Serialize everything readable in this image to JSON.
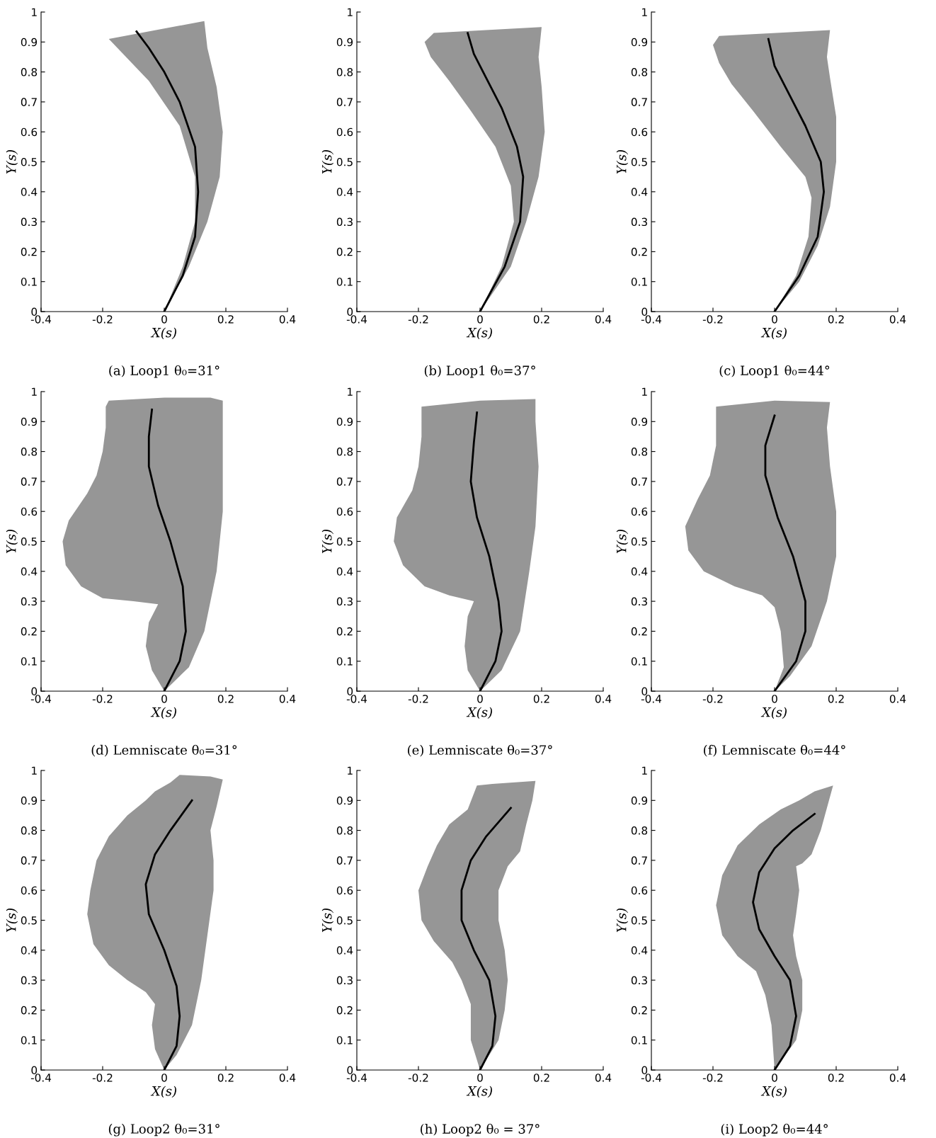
{
  "chart_data": [
    {
      "type": "line",
      "xlabel": "X(s)",
      "ylabel": "Y(s)",
      "annotations": [
        "(a) Loop1 θ₀=31°"
      ],
      "xlim": [
        -0.4,
        0.4
      ],
      "ylim": [
        0,
        1
      ],
      "xticks": [
        -0.4,
        -0.2,
        0,
        0.2,
        0.4
      ],
      "yticks": [
        0,
        0.1,
        0.2,
        0.3,
        0.4,
        0.5,
        0.6,
        0.7,
        0.8,
        0.9,
        1
      ],
      "grid": false,
      "series": [
        {
          "type": "area",
          "color": "#969696",
          "x": [
            0,
            0.08,
            0.14,
            0.18,
            0.19,
            0.17,
            0.14,
            0.13,
            -0.18,
            -0.05,
            0.05,
            0.1,
            0.1,
            0.06,
            0
          ],
          "values": [
            0,
            0.15,
            0.3,
            0.45,
            0.6,
            0.75,
            0.88,
            0.97,
            0.91,
            0.77,
            0.62,
            0.45,
            0.3,
            0.15,
            0
          ]
        },
        {
          "type": "line",
          "color": "#000000",
          "x": [
            0,
            0.06,
            0.1,
            0.11,
            0.1,
            0.05,
            0,
            -0.05,
            -0.09
          ],
          "values": [
            0,
            0.12,
            0.25,
            0.4,
            0.55,
            0.7,
            0.8,
            0.88,
            0.935
          ]
        }
      ]
    },
    {
      "type": "line",
      "xlabel": "X(s)",
      "ylabel": "Y(s)",
      "annotations": [
        "(b) Loop1 θ₀=37°"
      ],
      "xlim": [
        -0.4,
        0.4
      ],
      "ylim": [
        0,
        1
      ],
      "xticks": [
        -0.4,
        -0.2,
        0,
        0.2,
        0.4
      ],
      "yticks": [
        0,
        0.1,
        0.2,
        0.3,
        0.4,
        0.5,
        0.6,
        0.7,
        0.8,
        0.9,
        1
      ],
      "grid": false,
      "series": [
        {
          "type": "area",
          "color": "#969696",
          "x": [
            0,
            0.1,
            0.15,
            0.19,
            0.21,
            0.2,
            0.19,
            0.2,
            -0.15,
            -0.18,
            -0.16,
            -0.1,
            -0.03,
            0.05,
            0.1,
            0.11,
            0.07,
            0
          ],
          "values": [
            0,
            0.15,
            0.3,
            0.45,
            0.6,
            0.75,
            0.85,
            0.95,
            0.93,
            0.9,
            0.85,
            0.77,
            0.67,
            0.55,
            0.42,
            0.3,
            0.15,
            0
          ]
        },
        {
          "type": "line",
          "color": "#000000",
          "x": [
            0,
            0.08,
            0.13,
            0.14,
            0.12,
            0.07,
            0.02,
            -0.02,
            -0.04
          ],
          "values": [
            0,
            0.15,
            0.3,
            0.45,
            0.55,
            0.68,
            0.78,
            0.86,
            0.93
          ]
        }
      ]
    },
    {
      "type": "line",
      "xlabel": "X(s)",
      "ylabel": "Y(s)",
      "annotations": [
        "(c) Loop1 θ₀=44°"
      ],
      "xlim": [
        -0.4,
        0.4
      ],
      "ylim": [
        0,
        1
      ],
      "xticks": [
        -0.4,
        -0.2,
        0,
        0.2,
        0.4
      ],
      "yticks": [
        0,
        0.1,
        0.2,
        0.3,
        0.4,
        0.5,
        0.6,
        0.7,
        0.8,
        0.9,
        1
      ],
      "grid": false,
      "series": [
        {
          "type": "area",
          "color": "#969696",
          "x": [
            0,
            0.08,
            0.14,
            0.18,
            0.2,
            0.2,
            0.18,
            0.17,
            0.18,
            -0.18,
            -0.2,
            -0.18,
            -0.14,
            -0.07,
            0.02,
            0.1,
            0.12,
            0.11,
            0.07,
            0
          ],
          "values": [
            0,
            0.1,
            0.22,
            0.35,
            0.5,
            0.65,
            0.78,
            0.85,
            0.94,
            0.92,
            0.89,
            0.83,
            0.76,
            0.67,
            0.55,
            0.45,
            0.38,
            0.25,
            0.12,
            0
          ]
        },
        {
          "type": "line",
          "color": "#000000",
          "x": [
            0,
            0.08,
            0.14,
            0.16,
            0.15,
            0.1,
            0.05,
            0,
            -0.02
          ],
          "values": [
            0,
            0.12,
            0.25,
            0.4,
            0.5,
            0.62,
            0.72,
            0.82,
            0.91
          ]
        }
      ]
    },
    {
      "type": "line",
      "xlabel": "X(s)",
      "ylabel": "Y(s)",
      "annotations": [
        "(d) Lemniscate θ₀=31°"
      ],
      "xlim": [
        -0.4,
        0.4
      ],
      "ylim": [
        0,
        1
      ],
      "xticks": [
        -0.4,
        -0.2,
        0,
        0.2,
        0.4
      ],
      "yticks": [
        0,
        0.1,
        0.2,
        0.3,
        0.4,
        0.5,
        0.6,
        0.7,
        0.8,
        0.9,
        1
      ],
      "grid": false,
      "series": [
        {
          "type": "area",
          "color": "#969696",
          "x": [
            0,
            0.08,
            0.13,
            0.17,
            0.19,
            0.19,
            0.19,
            0.15,
            0,
            -0.18,
            -0.19,
            -0.19,
            -0.2,
            -0.22,
            -0.25,
            -0.31,
            -0.33,
            -0.32,
            -0.27,
            -0.2,
            -0.1,
            -0.02,
            -0.05,
            -0.06,
            -0.04,
            0
          ],
          "values": [
            0,
            0.08,
            0.2,
            0.4,
            0.6,
            0.8,
            0.97,
            0.98,
            0.98,
            0.97,
            0.95,
            0.88,
            0.8,
            0.72,
            0.66,
            0.57,
            0.5,
            0.42,
            0.35,
            0.31,
            0.3,
            0.29,
            0.23,
            0.15,
            0.07,
            0
          ]
        },
        {
          "type": "line",
          "color": "#000000",
          "x": [
            0,
            0.05,
            0.07,
            0.06,
            0.02,
            -0.02,
            -0.05,
            -0.05,
            -0.04
          ],
          "values": [
            0,
            0.1,
            0.2,
            0.35,
            0.5,
            0.62,
            0.75,
            0.85,
            0.94
          ]
        }
      ]
    },
    {
      "type": "line",
      "xlabel": "X(s)",
      "ylabel": "Y(s)",
      "annotations": [
        "(e) Lemniscate θ₀=37°"
      ],
      "xlim": [
        -0.4,
        0.4
      ],
      "ylim": [
        0,
        1
      ],
      "xticks": [
        -0.4,
        -0.2,
        0,
        0.2,
        0.4
      ],
      "yticks": [
        0,
        0.1,
        0.2,
        0.3,
        0.4,
        0.5,
        0.6,
        0.7,
        0.8,
        0.9,
        1
      ],
      "grid": false,
      "series": [
        {
          "type": "area",
          "color": "#969696",
          "x": [
            0,
            0.07,
            0.13,
            0.16,
            0.18,
            0.19,
            0.18,
            0.18,
            0,
            -0.19,
            -0.19,
            -0.2,
            -0.22,
            -0.27,
            -0.28,
            -0.25,
            -0.18,
            -0.1,
            -0.02,
            -0.04,
            -0.05,
            -0.04,
            0
          ],
          "values": [
            0,
            0.07,
            0.2,
            0.4,
            0.55,
            0.75,
            0.9,
            0.975,
            0.97,
            0.95,
            0.85,
            0.75,
            0.67,
            0.58,
            0.5,
            0.42,
            0.35,
            0.32,
            0.3,
            0.25,
            0.15,
            0.07,
            0
          ]
        },
        {
          "type": "line",
          "color": "#000000",
          "x": [
            0,
            0.05,
            0.07,
            0.06,
            0.03,
            -0.01,
            -0.03,
            -0.02,
            -0.01
          ],
          "values": [
            0,
            0.1,
            0.2,
            0.3,
            0.45,
            0.58,
            0.7,
            0.83,
            0.93
          ]
        }
      ]
    },
    {
      "type": "line",
      "xlabel": "X(s)",
      "ylabel": "Y(s)",
      "annotations": [
        "(f) Lemniscate θ₀=44°"
      ],
      "xlim": [
        -0.4,
        0.4
      ],
      "ylim": [
        0,
        1
      ],
      "xticks": [
        -0.4,
        -0.2,
        0,
        0.2,
        0.4
      ],
      "yticks": [
        0,
        0.1,
        0.2,
        0.3,
        0.4,
        0.5,
        0.6,
        0.7,
        0.8,
        0.9,
        1
      ],
      "grid": false,
      "series": [
        {
          "type": "area",
          "color": "#969696",
          "x": [
            0,
            0.05,
            0.12,
            0.17,
            0.2,
            0.2,
            0.18,
            0.17,
            0.18,
            0,
            -0.19,
            -0.19,
            -0.19,
            -0.21,
            -0.25,
            -0.29,
            -0.28,
            -0.23,
            -0.13,
            -0.04,
            0,
            0.02,
            0.03,
            0
          ],
          "values": [
            0,
            0.05,
            0.15,
            0.3,
            0.45,
            0.6,
            0.75,
            0.88,
            0.965,
            0.97,
            0.95,
            0.93,
            0.82,
            0.72,
            0.64,
            0.55,
            0.47,
            0.4,
            0.35,
            0.32,
            0.28,
            0.2,
            0.08,
            0
          ]
        },
        {
          "type": "line",
          "color": "#000000",
          "x": [
            0,
            0.07,
            0.1,
            0.1,
            0.06,
            0.01,
            -0.03,
            -0.03,
            0
          ],
          "values": [
            0,
            0.1,
            0.2,
            0.3,
            0.45,
            0.58,
            0.72,
            0.82,
            0.92
          ]
        }
      ]
    },
    {
      "type": "line",
      "xlabel": "X(s)",
      "ylabel": "Y(s)",
      "annotations": [
        "(g) Loop2 θ₀=31°"
      ],
      "xlim": [
        -0.4,
        0.4
      ],
      "ylim": [
        0,
        1
      ],
      "xticks": [
        -0.4,
        -0.2,
        0,
        0.2,
        0.4
      ],
      "yticks": [
        0,
        0.1,
        0.2,
        0.3,
        0.4,
        0.5,
        0.6,
        0.7,
        0.8,
        0.9,
        1
      ],
      "grid": false,
      "series": [
        {
          "type": "area",
          "color": "#969696",
          "x": [
            0,
            0.04,
            0.09,
            0.12,
            0.14,
            0.16,
            0.16,
            0.15,
            0.17,
            0.19,
            0.15,
            0.05,
            0.02,
            -0.03,
            -0.06,
            -0.12,
            -0.18,
            -0.22,
            -0.24,
            -0.25,
            -0.23,
            -0.18,
            -0.12,
            -0.06,
            -0.03,
            -0.04,
            -0.03,
            0
          ],
          "values": [
            0,
            0.05,
            0.15,
            0.3,
            0.45,
            0.6,
            0.7,
            0.8,
            0.88,
            0.97,
            0.98,
            0.985,
            0.96,
            0.93,
            0.9,
            0.85,
            0.78,
            0.7,
            0.6,
            0.52,
            0.42,
            0.35,
            0.3,
            0.26,
            0.22,
            0.15,
            0.07,
            0
          ]
        },
        {
          "type": "line",
          "color": "#000000",
          "x": [
            0,
            0.04,
            0.05,
            0.04,
            0,
            -0.05,
            -0.06,
            -0.03,
            0.02,
            0.09
          ],
          "values": [
            0,
            0.08,
            0.18,
            0.28,
            0.4,
            0.52,
            0.62,
            0.72,
            0.8,
            0.9
          ]
        }
      ]
    },
    {
      "type": "line",
      "xlabel": "X(s)",
      "ylabel": "Y(s)",
      "annotations": [
        "(h) Loop2 θ₀ = 37°"
      ],
      "xlim": [
        -0.4,
        0.4
      ],
      "ylim": [
        0,
        1
      ],
      "xticks": [
        -0.4,
        -0.2,
        0,
        0.2,
        0.4
      ],
      "yticks": [
        0,
        0.1,
        0.2,
        0.3,
        0.4,
        0.5,
        0.6,
        0.7,
        0.8,
        0.9,
        1
      ],
      "grid": false,
      "series": [
        {
          "type": "area",
          "color": "#969696",
          "x": [
            0,
            0.06,
            0.08,
            0.09,
            0.08,
            0.06,
            0.06,
            0.09,
            0.13,
            0.15,
            0.17,
            0.18,
            0.04,
            -0.01,
            -0.04,
            -0.1,
            -0.14,
            -0.17,
            -0.2,
            -0.19,
            -0.15,
            -0.09,
            -0.06,
            -0.03,
            -0.03,
            0
          ],
          "values": [
            0,
            0.1,
            0.2,
            0.3,
            0.4,
            0.5,
            0.6,
            0.68,
            0.73,
            0.82,
            0.9,
            0.965,
            0.955,
            0.95,
            0.87,
            0.82,
            0.75,
            0.68,
            0.6,
            0.5,
            0.43,
            0.36,
            0.3,
            0.22,
            0.1,
            0
          ]
        },
        {
          "type": "line",
          "color": "#000000",
          "x": [
            0,
            0.04,
            0.05,
            0.03,
            -0.02,
            -0.06,
            -0.06,
            -0.03,
            0.02,
            0.1
          ],
          "values": [
            0,
            0.08,
            0.18,
            0.3,
            0.4,
            0.5,
            0.6,
            0.7,
            0.78,
            0.875
          ]
        }
      ]
    },
    {
      "type": "line",
      "xlabel": "X(s)",
      "ylabel": "Y(s)",
      "annotations": [
        "(i) Loop2 θ₀=44°"
      ],
      "xlim": [
        -0.4,
        0.4
      ],
      "ylim": [
        0,
        1
      ],
      "xticks": [
        -0.4,
        -0.2,
        0,
        0.2,
        0.4
      ],
      "yticks": [
        0,
        0.1,
        0.2,
        0.3,
        0.4,
        0.5,
        0.6,
        0.7,
        0.8,
        0.9,
        1
      ],
      "grid": false,
      "series": [
        {
          "type": "area",
          "color": "#969696",
          "x": [
            0,
            0.07,
            0.09,
            0.09,
            0.07,
            0.06,
            0.07,
            0.08,
            0.07,
            0.09,
            0.12,
            0.15,
            0.19,
            0.13,
            0.08,
            0.02,
            -0.05,
            -0.12,
            -0.17,
            -0.19,
            -0.17,
            -0.12,
            -0.06,
            -0.03,
            -0.01,
            0
          ],
          "values": [
            0,
            0.1,
            0.2,
            0.3,
            0.38,
            0.45,
            0.52,
            0.6,
            0.68,
            0.69,
            0.72,
            0.8,
            0.95,
            0.93,
            0.9,
            0.87,
            0.82,
            0.75,
            0.65,
            0.55,
            0.45,
            0.38,
            0.33,
            0.25,
            0.15,
            0
          ]
        },
        {
          "type": "line",
          "color": "#000000",
          "x": [
            0,
            0.05,
            0.07,
            0.05,
            0,
            -0.05,
            -0.07,
            -0.05,
            0,
            0.06,
            0.13
          ],
          "values": [
            0,
            0.08,
            0.18,
            0.3,
            0.38,
            0.47,
            0.56,
            0.66,
            0.74,
            0.8,
            0.855
          ]
        }
      ]
    }
  ]
}
